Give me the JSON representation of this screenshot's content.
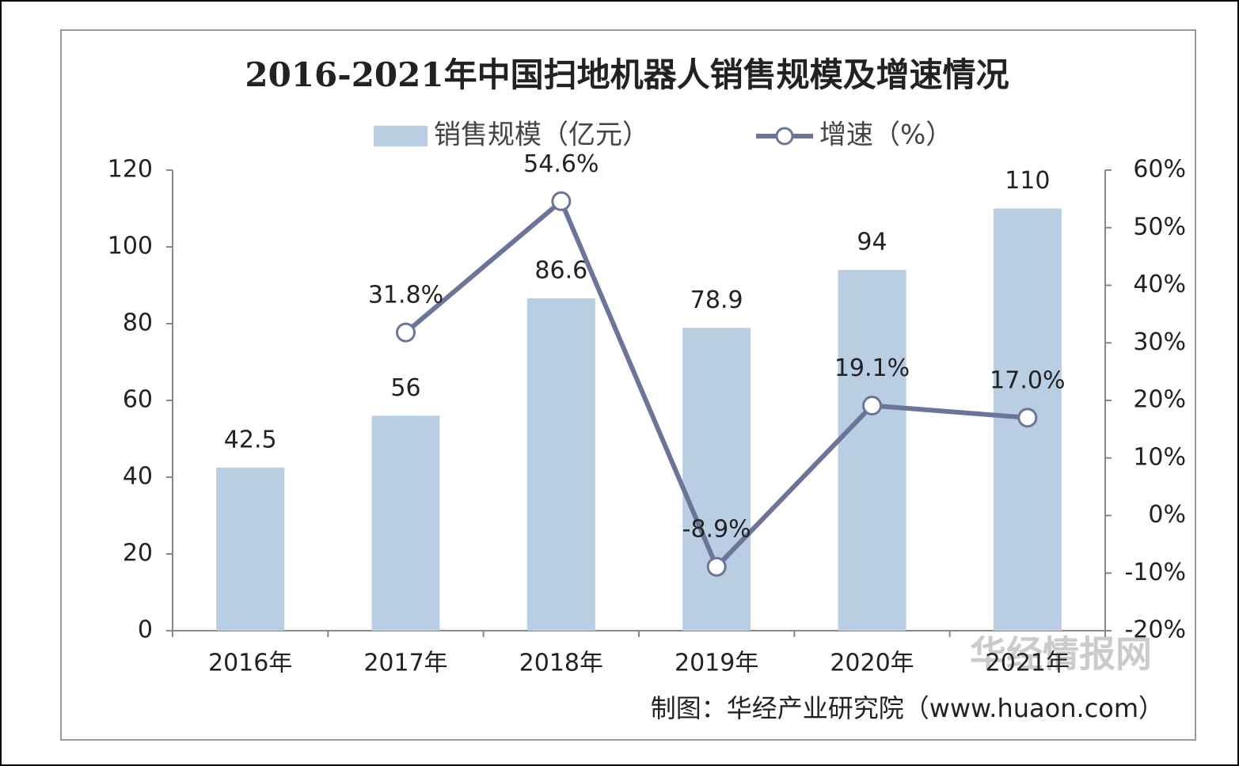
{
  "chart_data": {
    "type": "bar",
    "title": "2016-2021年中国扫地机器人销售规模及增速情况",
    "categories": [
      "2016年",
      "2017年",
      "2018年",
      "2019年",
      "2020年",
      "2021年"
    ],
    "series": [
      {
        "name": "销售规模（亿元）",
        "type": "bar",
        "color": "#b9cde3",
        "values": [
          42.5,
          56,
          86.6,
          78.9,
          94,
          110
        ]
      },
      {
        "name": "增速（%）",
        "type": "line",
        "axis": "y2",
        "color": "#6b7599",
        "values": [
          null,
          31.8,
          54.6,
          -8.9,
          19.1,
          17.0
        ],
        "value_labels": [
          null,
          "31.8%",
          "54.6%",
          "-8.9%",
          "19.1%",
          "17.0%"
        ]
      }
    ],
    "ylim": [
      0,
      120
    ],
    "yticks": [
      0,
      20,
      40,
      60,
      80,
      100,
      120
    ],
    "y2lim": [
      -20,
      60
    ],
    "y2ticks": [
      {
        "value": -20,
        "label": "-20%"
      },
      {
        "value": -10,
        "label": "-10%"
      },
      {
        "value": 0,
        "label": "0%"
      },
      {
        "value": 10,
        "label": "10%"
      },
      {
        "value": 20,
        "label": "20%"
      },
      {
        "value": 30,
        "label": "30%"
      },
      {
        "value": 40,
        "label": "40%"
      },
      {
        "value": 50,
        "label": "50%"
      },
      {
        "value": 60,
        "label": "60%"
      }
    ],
    "grid": false,
    "legend": "top",
    "source": "制图：华经产业研究院（www.huaon.com）",
    "watermark": "华经情报网"
  }
}
